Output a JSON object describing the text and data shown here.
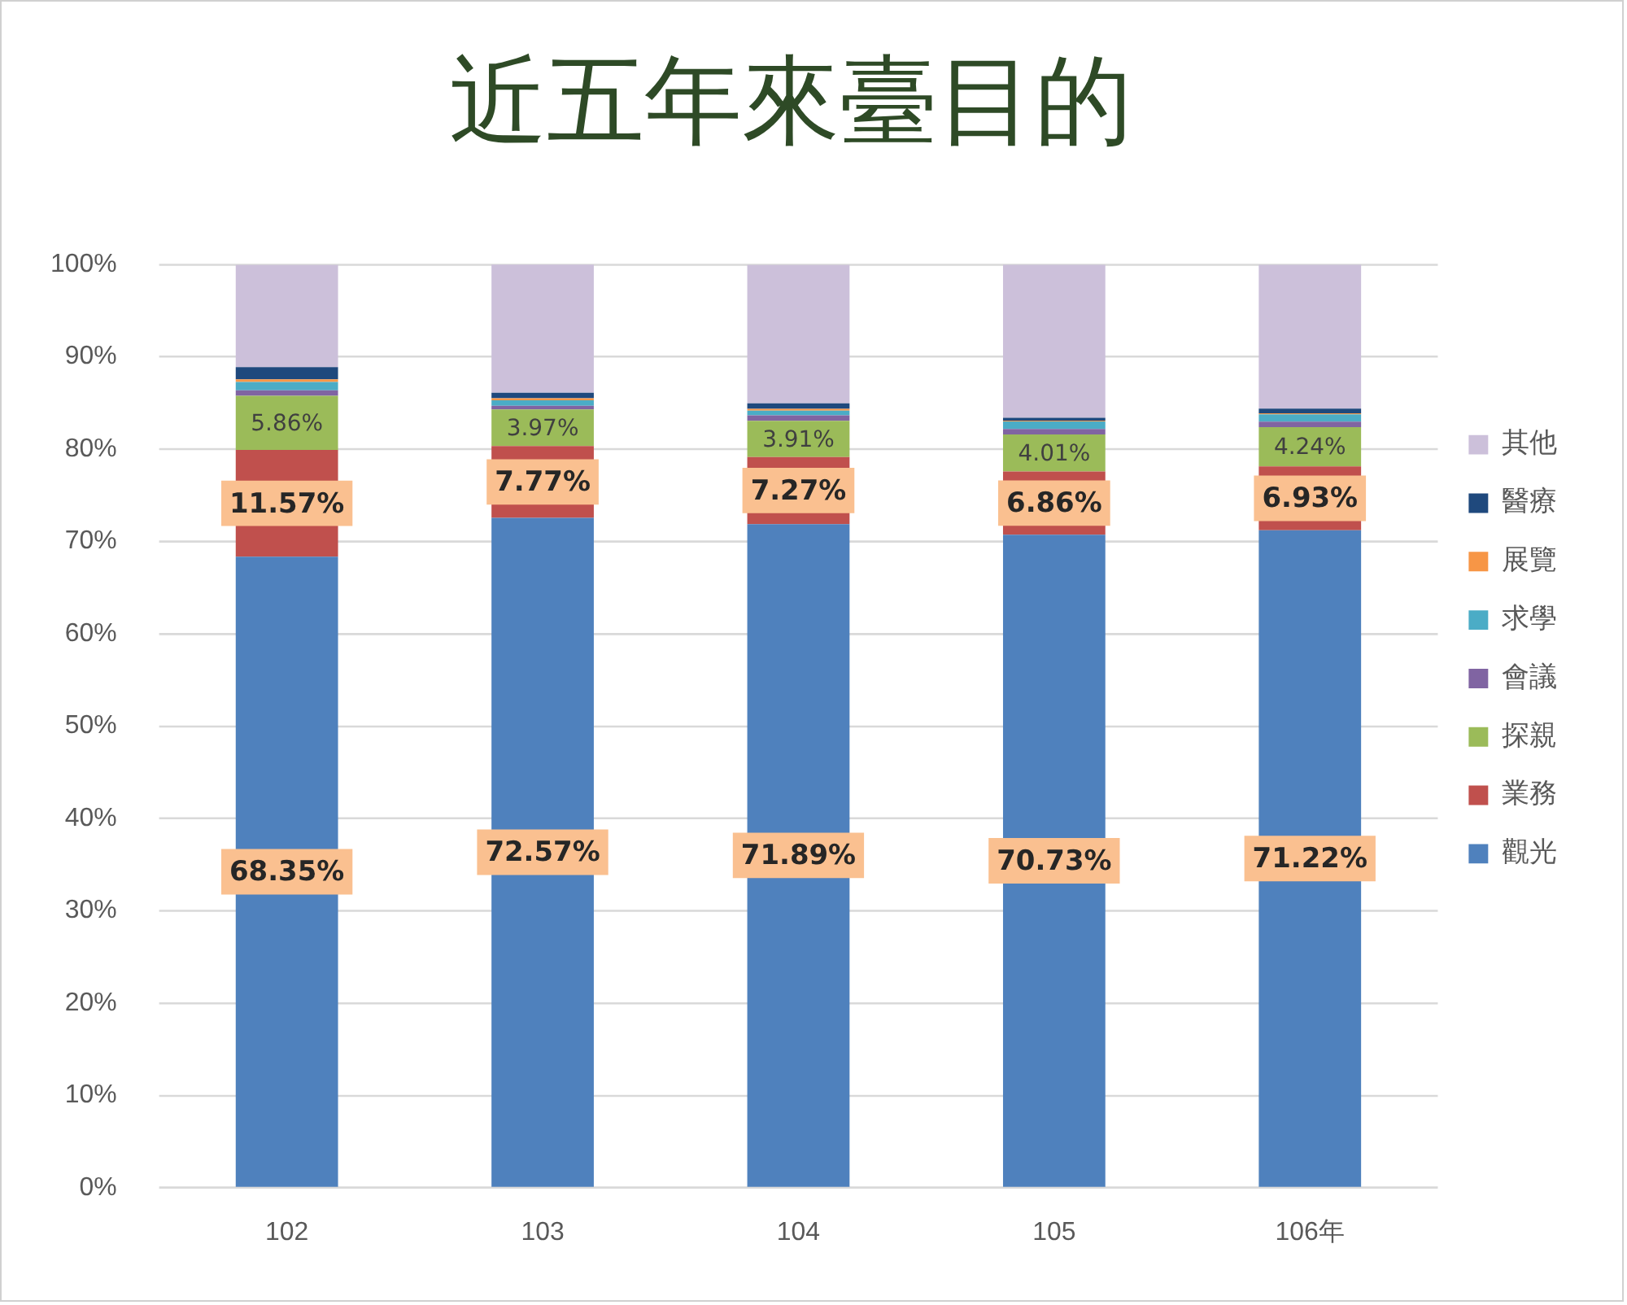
{
  "chart_data": {
    "type": "bar",
    "title": "近五年來臺目的",
    "categories": [
      "102",
      "103",
      "104",
      "105",
      "106年"
    ],
    "stacked": true,
    "ylim": [
      0,
      100
    ],
    "yticks": [
      {
        "value": 0,
        "label": "0%"
      },
      {
        "value": 10,
        "label": "10%"
      },
      {
        "value": 20,
        "label": "20%"
      },
      {
        "value": 30,
        "label": "30%"
      },
      {
        "value": 40,
        "label": "40%"
      },
      {
        "value": 50,
        "label": "50%"
      },
      {
        "value": 60,
        "label": "60%"
      },
      {
        "value": 70,
        "label": "70%"
      },
      {
        "value": 80,
        "label": "80%"
      },
      {
        "value": 90,
        "label": "90%"
      },
      {
        "value": 100,
        "label": "100%"
      }
    ],
    "grid": "y",
    "legend": "right",
    "series": [
      {
        "name": "觀光",
        "color": "#4f81bd",
        "values": [
          68.35,
          72.57,
          71.89,
          70.73,
          71.22
        ],
        "value_labels": [
          "68.35%",
          "72.57%",
          "71.89%",
          "70.73%",
          "71.22%"
        ]
      },
      {
        "name": "業務",
        "color": "#c0504d",
        "values": [
          11.57,
          7.77,
          7.27,
          6.86,
          6.93
        ],
        "value_labels": [
          "11.57%",
          "7.77%",
          "7.27%",
          "6.86%",
          "6.93%"
        ]
      },
      {
        "name": "探親",
        "color": "#9bbb59",
        "values": [
          5.86,
          3.97,
          3.91,
          4.01,
          4.24
        ],
        "value_labels": [
          "5.86%",
          "3.97%",
          "3.91%",
          "4.01%",
          "4.24%"
        ]
      },
      {
        "name": "會議",
        "color": "#8064a2",
        "values": [
          0.6,
          0.4,
          0.6,
          0.6,
          0.6
        ]
      },
      {
        "name": "求學",
        "color": "#4bacc6",
        "values": [
          0.9,
          0.6,
          0.5,
          0.8,
          0.8
        ]
      },
      {
        "name": "展覽",
        "color": "#f79646",
        "values": [
          0.3,
          0.2,
          0.2,
          0.1,
          0.1
        ]
      },
      {
        "name": "醫療",
        "color": "#1f497d",
        "values": [
          1.3,
          0.6,
          0.6,
          0.3,
          0.5
        ]
      },
      {
        "name": "其他",
        "color": "#ccc0da",
        "values": [
          11.1,
          13.9,
          15,
          16.6,
          15.6
        ]
      }
    ]
  }
}
